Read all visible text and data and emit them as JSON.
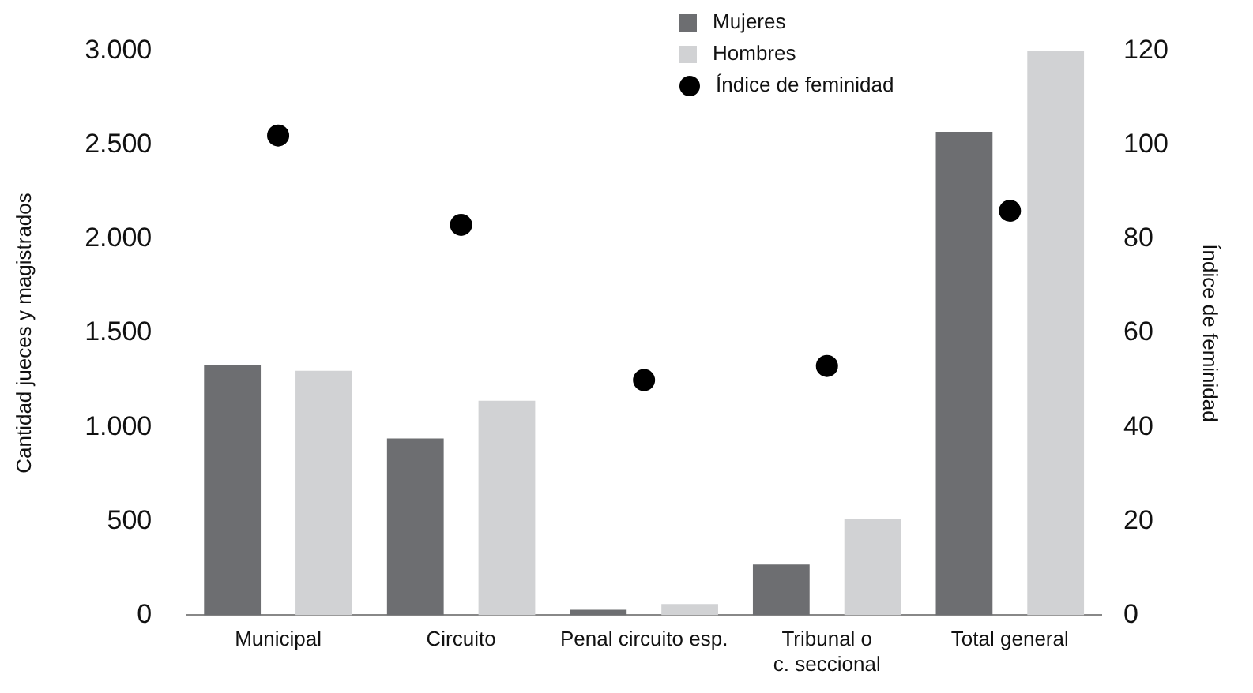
{
  "chart_data": {
    "type": "bar",
    "categories": [
      "Municipal",
      "Circuito",
      "Penal circuito esp.",
      "Tribunal o c. seccional",
      "Total general"
    ],
    "ylabel": "Cantidad jueces y magistrados",
    "y2label": "Índice de feminidad",
    "series": [
      {
        "name": "Mujeres",
        "color": "#6d6e71",
        "values": [
          1330,
          940,
          30,
          270,
          2570
        ]
      },
      {
        "name": "Hombres",
        "color": "#d1d2d4",
        "values": [
          1300,
          1140,
          60,
          510,
          3000
        ]
      },
      {
        "name": "Índice de feminidad",
        "type": "scatter",
        "axis": "y2",
        "color": "#000000",
        "values": [
          102,
          83,
          50,
          53,
          86
        ]
      }
    ],
    "ylim": [
      0,
      3000
    ],
    "yticks": [
      {
        "value": 0,
        "label": "0"
      },
      {
        "value": 500,
        "label": "500"
      },
      {
        "value": 1000,
        "label": "1.000"
      },
      {
        "value": 1500,
        "label": "1.500"
      },
      {
        "value": 2000,
        "label": "2.000"
      },
      {
        "value": 2500,
        "label": "2.500"
      },
      {
        "value": 3000,
        "label": "3.000"
      }
    ],
    "y2lim": [
      0,
      120
    ],
    "y2ticks": [
      0,
      20,
      40,
      60,
      80,
      100,
      120
    ],
    "grid": false,
    "legend": "top",
    "marker": "circle"
  }
}
